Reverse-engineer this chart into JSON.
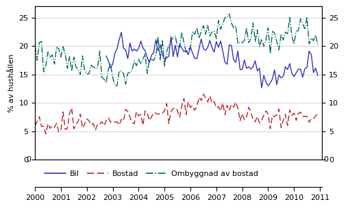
{
  "title": "",
  "ylabel_left": "% av hushållen",
  "ylim": [
    0,
    27
  ],
  "yticks": [
    0,
    5,
    10,
    15,
    20,
    25
  ],
  "xlim_left": 2000.0,
  "xlim_right": 2011.08,
  "xticks": [
    2000,
    2001,
    2002,
    2003,
    2004,
    2005,
    2006,
    2007,
    2008,
    2009,
    2010,
    2011
  ],
  "color_bil": "#3333bb",
  "color_bostad": "#bb2222",
  "color_ombyggnad": "#006655",
  "legend_labels": [
    "Bil",
    "Bostad",
    "Ombyggnad av bostad"
  ],
  "bil_start_year": 2002.75,
  "ombyggnad_start_year": 2000.0,
  "bostad_start_year": 2000.0,
  "seed": 42
}
